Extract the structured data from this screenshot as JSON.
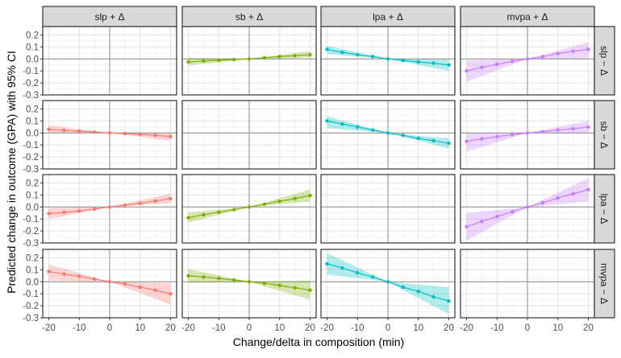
{
  "chart_data": {
    "type": "line",
    "xlabel": "Change/delta in composition (min)",
    "ylabel": "Predicted change in outcome (GPA) with 95% CI",
    "xlim": [
      -22,
      22
    ],
    "ylim": [
      -0.3,
      0.27
    ],
    "xticks": [
      -20,
      -10,
      0,
      10,
      20
    ],
    "xtick_labels": [
      "-20",
      "-10",
      "0",
      "10",
      "20"
    ],
    "yticks": [
      0.2,
      0.1,
      0.0,
      -0.1,
      -0.2,
      -0.3
    ],
    "ytick_labels": [
      "0.2",
      "0.1",
      "0.0",
      "-0.1",
      "-0.2",
      "-0.3"
    ],
    "grid": true,
    "col_labels": [
      "slp + Δ",
      "sb + Δ",
      "lpa + Δ",
      "mvpa + Δ"
    ],
    "row_labels": [
      "slp − Δ",
      "sb − Δ",
      "lpa − Δ",
      "mvpa − Δ"
    ],
    "colors": [
      "#F8766D",
      "#7CAE00",
      "#00BFC4",
      "#C77CFF"
    ],
    "x": [
      -20,
      -15,
      -10,
      -5,
      0,
      5,
      10,
      15,
      20
    ],
    "panels": [
      {
        "row": 0,
        "col": 1,
        "values": [
          -0.025,
          -0.017,
          -0.011,
          -0.005,
          0,
          0.01,
          0.02,
          0.027,
          0.035
        ],
        "lower": [
          -0.055,
          -0.041,
          -0.028,
          -0.014,
          0,
          0.003,
          0.005,
          0.008,
          0.01
        ],
        "upper": [
          0.01,
          0.008,
          0.005,
          0.003,
          0,
          0.016,
          0.033,
          0.049,
          0.065
        ]
      },
      {
        "row": 0,
        "col": 2,
        "values": [
          0.08,
          0.055,
          0.035,
          0.02,
          0,
          -0.012,
          -0.025,
          -0.035,
          -0.05
        ],
        "lower": [
          0.04,
          0.03,
          0.02,
          0.01,
          0,
          -0.025,
          -0.05,
          -0.075,
          -0.1
        ],
        "upper": [
          0.11,
          0.083,
          0.055,
          0.028,
          0,
          -0.001,
          -0.003,
          -0.004,
          -0.005
        ]
      },
      {
        "row": 0,
        "col": 3,
        "values": [
          -0.1,
          -0.07,
          -0.045,
          -0.02,
          0,
          0.02,
          0.045,
          0.065,
          0.08
        ],
        "lower": [
          -0.19,
          -0.143,
          -0.095,
          -0.048,
          0,
          0.001,
          0.003,
          0.004,
          0.005
        ],
        "upper": [
          -0.01,
          -0.008,
          -0.005,
          -0.003,
          0,
          0.035,
          0.07,
          0.105,
          0.14
        ]
      },
      {
        "row": 1,
        "col": 0,
        "values": [
          0.03,
          0.022,
          0.015,
          0.008,
          0,
          -0.005,
          -0.012,
          -0.02,
          -0.03
        ],
        "lower": [
          0,
          0,
          0,
          0,
          0,
          -0.016,
          -0.033,
          -0.049,
          -0.065
        ],
        "upper": [
          0.065,
          0.049,
          0.033,
          0.016,
          0,
          0.001,
          0.003,
          0.004,
          0.005
        ]
      },
      {
        "row": 1,
        "col": 2,
        "values": [
          0.1,
          0.075,
          0.05,
          0.025,
          0,
          -0.02,
          -0.045,
          -0.065,
          -0.085
        ],
        "lower": [
          0.04,
          0.03,
          0.02,
          0.01,
          0,
          -0.033,
          -0.065,
          -0.098,
          -0.13
        ],
        "upper": [
          0.14,
          0.105,
          0.07,
          0.035,
          0,
          -0.011,
          -0.023,
          -0.034,
          -0.045
        ]
      },
      {
        "row": 1,
        "col": 3,
        "values": [
          -0.07,
          -0.05,
          -0.03,
          -0.015,
          0,
          0.01,
          0.025,
          0.035,
          0.05
        ],
        "lower": [
          -0.155,
          -0.116,
          -0.078,
          -0.039,
          0,
          -0.001,
          -0.003,
          -0.004,
          -0.005
        ],
        "upper": [
          0,
          0,
          0,
          0,
          0,
          0.025,
          0.05,
          0.075,
          0.1
        ]
      },
      {
        "row": 2,
        "col": 0,
        "values": [
          -0.055,
          -0.045,
          -0.033,
          -0.018,
          0,
          0.015,
          0.03,
          0.05,
          0.07
        ],
        "lower": [
          -0.1,
          -0.075,
          -0.05,
          -0.025,
          0,
          0.008,
          0.015,
          0.023,
          0.03
        ],
        "upper": [
          -0.01,
          -0.008,
          -0.005,
          -0.003,
          0,
          0.028,
          0.055,
          0.083,
          0.11
        ]
      },
      {
        "row": 2,
        "col": 1,
        "values": [
          -0.09,
          -0.065,
          -0.043,
          -0.022,
          0,
          0.023,
          0.048,
          0.07,
          0.095
        ],
        "lower": [
          -0.13,
          -0.098,
          -0.065,
          -0.033,
          0,
          0.011,
          0.023,
          0.034,
          0.045
        ],
        "upper": [
          -0.045,
          -0.034,
          -0.023,
          -0.011,
          0,
          0.036,
          0.073,
          0.109,
          0.145
        ]
      },
      {
        "row": 2,
        "col": 3,
        "values": [
          -0.165,
          -0.12,
          -0.08,
          -0.04,
          0,
          0.035,
          0.075,
          0.11,
          0.145
        ],
        "lower": [
          -0.28,
          -0.21,
          -0.14,
          -0.07,
          0,
          0.011,
          0.023,
          0.034,
          0.045
        ],
        "upper": [
          -0.05,
          -0.038,
          -0.025,
          -0.013,
          0,
          0.06,
          0.12,
          0.18,
          0.24
        ]
      },
      {
        "row": 3,
        "col": 0,
        "values": [
          0.085,
          0.065,
          0.045,
          0.023,
          0,
          -0.018,
          -0.045,
          -0.07,
          -0.1
        ],
        "lower": [
          0.01,
          0.008,
          0.005,
          0.003,
          0,
          -0.048,
          -0.095,
          -0.143,
          -0.19
        ],
        "upper": [
          0.145,
          0.109,
          0.073,
          0.036,
          0,
          -0.003,
          -0.005,
          -0.008,
          -0.01
        ]
      },
      {
        "row": 3,
        "col": 1,
        "values": [
          0.05,
          0.04,
          0.028,
          0.015,
          0,
          -0.012,
          -0.03,
          -0.05,
          -0.07
        ],
        "lower": [
          -0.01,
          -0.008,
          -0.005,
          -0.003,
          0,
          -0.038,
          -0.075,
          -0.113,
          -0.15
        ],
        "upper": [
          0.105,
          0.079,
          0.053,
          0.026,
          0,
          0.003,
          0.005,
          0.008,
          0.01
        ]
      },
      {
        "row": 3,
        "col": 2,
        "values": [
          0.15,
          0.115,
          0.075,
          0.04,
          0,
          -0.045,
          -0.08,
          -0.125,
          -0.16
        ],
        "lower": [
          0.06,
          0.045,
          0.03,
          0.015,
          0,
          -0.068,
          -0.135,
          -0.203,
          -0.27
        ],
        "upper": [
          0.24,
          0.18,
          0.12,
          0.06,
          0,
          -0.011,
          -0.023,
          -0.034,
          -0.045
        ]
      }
    ]
  }
}
